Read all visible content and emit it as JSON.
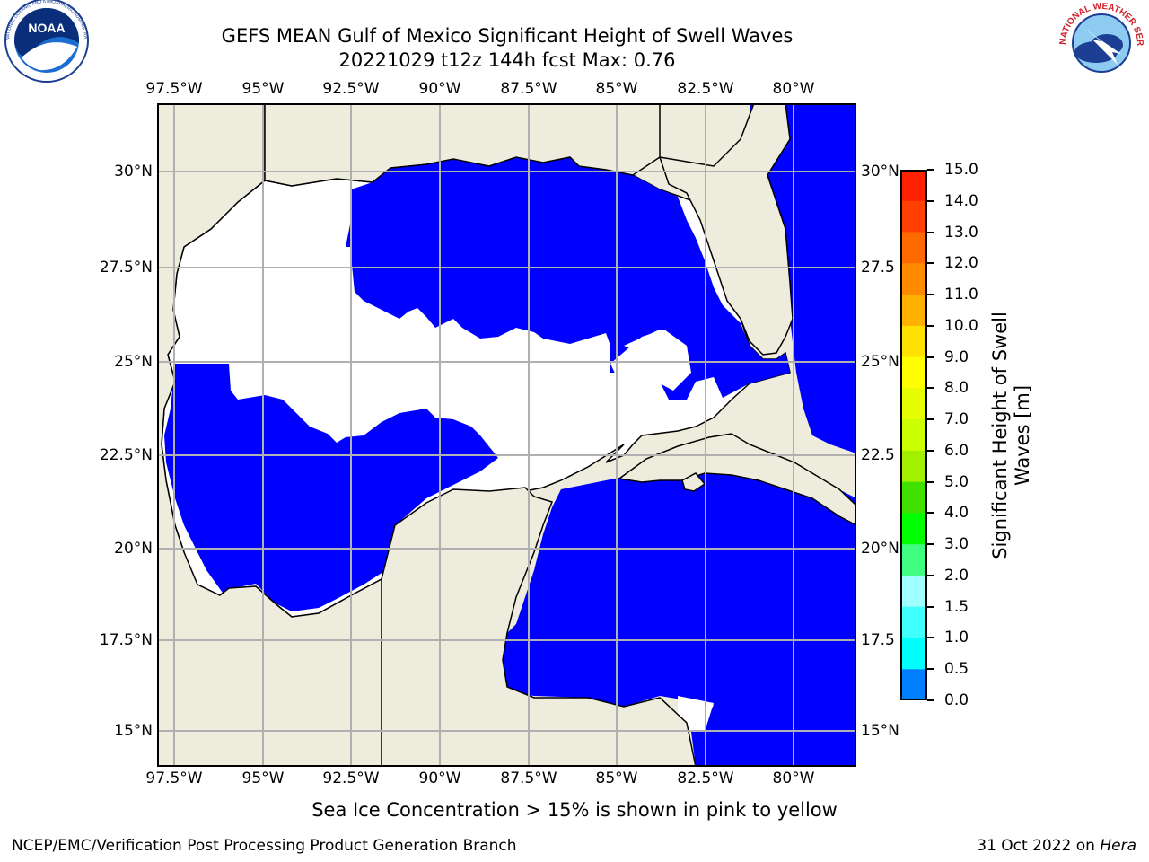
{
  "header": {
    "title_line1": "GEFS MEAN Gulf of Mexico Significant Height of Swell Waves",
    "title_line2": "20221029 t12z 144h fcst   Max: 0.76"
  },
  "logos": {
    "noaa": {
      "text": "NOAA",
      "ring_text": "NATIONAL OCEANIC AND ATMOSPHERIC ADMINISTRATION · U.S. DEPARTMENT OF COMMERCE"
    },
    "nws": {
      "ring_text": "NATIONAL WEATHER SERVICE"
    }
  },
  "map": {
    "lon_labels": [
      "97.5°W",
      "95°W",
      "92.5°W",
      "90°W",
      "87.5°W",
      "85°W",
      "82.5°W",
      "80°W"
    ],
    "lat_labels_left": [
      "30°N",
      "27.5°N",
      "25°N",
      "22.5°N",
      "20°N",
      "17.5°N",
      "15°N"
    ],
    "lat_labels_right": [
      "30°N",
      "27.5",
      "25°N",
      "22.5",
      "20°N",
      "17.5",
      "15°N"
    ],
    "colors": {
      "land": "#eeecdc",
      "ocean_low": "#0000ff",
      "ocean_mid": "#0080ff",
      "no_data": "#ffffff",
      "grid": "#b0b0b0",
      "coast": "#000000"
    }
  },
  "colorbar": {
    "label": "Significant Height of Swell Waves [m]",
    "label_line1": "Significant Height of Swell",
    "label_line2": "Waves [m]",
    "ticks": [
      "15.0",
      "14.0",
      "13.0",
      "12.0",
      "11.0",
      "10.0",
      "9.0",
      "8.0",
      "7.0",
      "6.0",
      "5.0",
      "4.0",
      "3.0",
      "2.0",
      "1.5",
      "1.0",
      "0.5",
      "0.0"
    ],
    "colors": [
      "#ff0000",
      "#ff2000",
      "#ff4000",
      "#ff6a00",
      "#ff8c00",
      "#ffb000",
      "#ffe000",
      "#ffff00",
      "#e6ff00",
      "#ccff00",
      "#a0f000",
      "#40e000",
      "#00ff00",
      "#40ff80",
      "#a0ffff",
      "#40ffff",
      "#00ffff",
      "#0080ff",
      "#0000ff"
    ]
  },
  "caption": "Sea Ice Concentration > 15% is shown in pink to yellow",
  "footer": {
    "left": "NCEP/EMC/Verification Post Processing Product Generation Branch",
    "right_date": "31 Oct 2022 on ",
    "right_machine": "Hera"
  }
}
